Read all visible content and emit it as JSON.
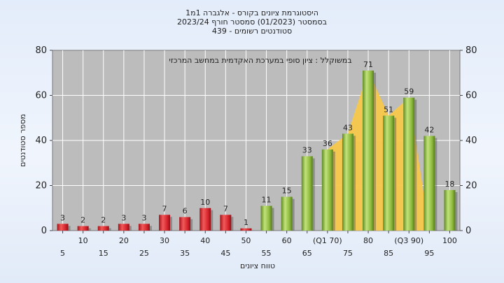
{
  "chart_data": {
    "type": "bar",
    "title_lines": [
      "היסטוגרמת ציונים בקורס - אלגברה 1מ1",
      "בסמסטר  (01/2023)  סמסטר חורף  2023/24",
      "סטודנטים רשומים - 439"
    ],
    "annotation": "במשוקלל : ציון סופי במערכת האקדמית במחשב המרכזי",
    "xlabel": "טווח ציונים",
    "ylabel": "מספר סטודנטים",
    "ylim": [
      0,
      80
    ],
    "yticks": [
      0,
      20,
      40,
      60,
      80
    ],
    "grid": true,
    "categories": [
      "5",
      "10",
      "15",
      "20",
      "25",
      "30",
      "35",
      "40",
      "45",
      "50",
      "55",
      "60",
      "65",
      "70",
      "75",
      "80",
      "85",
      "90",
      "95",
      "100"
    ],
    "x_tick_labels": [
      "5",
      "10",
      "15",
      "20",
      "25",
      "30",
      "35",
      "40",
      "45",
      "50",
      "55",
      "60",
      "65",
      "(Q1 70)",
      "75",
      "80",
      "85",
      "(Q3 90)",
      "95",
      "100"
    ],
    "values": [
      3,
      2,
      2,
      3,
      3,
      7,
      6,
      10,
      7,
      1,
      11,
      15,
      33,
      36,
      43,
      71,
      51,
      59,
      42,
      18
    ],
    "value_labels": [
      "3",
      "2",
      "2",
      "3",
      "3",
      "7",
      "6",
      "10",
      "7",
      "1",
      "11",
      "15",
      "33",
      "36",
      "43",
      "71",
      "51",
      "59",
      "42",
      "18"
    ],
    "fail_threshold_index": 10,
    "iqr_band": {
      "start_index": 13,
      "end_index": 17
    },
    "colors": {
      "fail_bar": "#d8282c",
      "pass_bar": "#8fbb3e",
      "plot_bg": "#bcbcbc",
      "band": "#f7c84a",
      "grid": "#ffffff"
    }
  }
}
